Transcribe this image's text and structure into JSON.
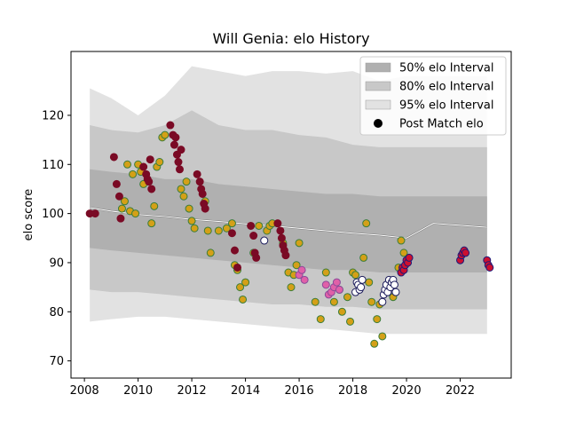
{
  "chart_data": {
    "type": "scatter",
    "title": "Will Genia: elo History",
    "xlabel": "",
    "ylabel": "elo score",
    "xlim": [
      2007.5,
      2023.9
    ],
    "ylim": [
      66.5,
      133
    ],
    "xticks": [
      2008,
      2010,
      2012,
      2014,
      2016,
      2018,
      2020,
      2022
    ],
    "yticks": [
      70,
      80,
      90,
      100,
      110,
      120
    ],
    "grid": false,
    "legend_position": "upper right",
    "legend": [
      {
        "label": "50% elo Interval",
        "color": "#b0b0b0",
        "kind": "band"
      },
      {
        "label": "80% elo Interval",
        "color": "#c8c8c8",
        "kind": "band"
      },
      {
        "label": "95% elo Interval",
        "color": "#e2e2e2",
        "kind": "band"
      },
      {
        "label": "Post Match elo",
        "color": "#000000",
        "kind": "dot"
      }
    ],
    "bands": {
      "x": [
        2008.2,
        2009.0,
        2010.0,
        2011.0,
        2012.0,
        2013.0,
        2014.0,
        2015.0,
        2016.0,
        2017.0,
        2018.0,
        2019.0,
        2020.0,
        2021.0,
        2022.0,
        2023.0
      ],
      "p95_hi": [
        125.5,
        123.5,
        120.0,
        124.0,
        130.0,
        129.0,
        128.0,
        129.0,
        129.0,
        128.5,
        129.0,
        127.0,
        128.0,
        128.0,
        128.0,
        128.0
      ],
      "p80_hi": [
        118.0,
        117.0,
        116.5,
        118.0,
        121.0,
        118.0,
        117.0,
        117.0,
        116.0,
        115.5,
        114.0,
        113.5,
        113.5,
        113.5,
        113.5,
        113.5
      ],
      "p50_hi": [
        109.0,
        108.5,
        108.0,
        107.0,
        107.0,
        106.0,
        105.5,
        105.0,
        104.5,
        104.0,
        104.0,
        103.5,
        103.5,
        103.5,
        103.5,
        103.5
      ],
      "p50_lo": [
        93.0,
        92.5,
        92.0,
        91.5,
        91.0,
        90.5,
        90.0,
        89.5,
        89.0,
        88.5,
        88.5,
        88.0,
        88.0,
        88.0,
        88.0,
        88.0
      ],
      "p80_lo": [
        84.5,
        84.0,
        84.0,
        83.5,
        83.0,
        82.5,
        82.0,
        81.5,
        81.5,
        81.0,
        81.0,
        80.5,
        80.5,
        80.5,
        80.5,
        80.5
      ],
      "p95_lo": [
        78.0,
        78.5,
        79.0,
        79.0,
        78.5,
        78.0,
        77.5,
        77.0,
        76.5,
        76.5,
        76.0,
        75.5,
        75.5,
        75.5,
        75.5,
        75.5
      ]
    },
    "median_line": {
      "x": [
        2008.2,
        2009.0,
        2010.0,
        2011.0,
        2012.0,
        2013.0,
        2014.0,
        2015.0,
        2016.0,
        2017.0,
        2018.0,
        2019.0,
        2020.0,
        2021.0,
        2022.0,
        2023.0
      ],
      "y": [
        101.2,
        100.5,
        99.8,
        99.4,
        98.8,
        98.4,
        97.9,
        97.5,
        97.0,
        96.5,
        96.0,
        95.6,
        95.0,
        98.0,
        97.6,
        97.2
      ]
    },
    "series": [
      {
        "color": "#d4a017",
        "edge": "#3a7d3a",
        "x": [
          2009.4,
          2009.5,
          2009.6,
          2009.7,
          2009.8,
          2009.9,
          2010.0,
          2010.1,
          2010.2,
          2010.5,
          2010.6,
          2010.7,
          2010.8,
          2010.9,
          2011.0,
          2011.6,
          2011.7,
          2011.8,
          2011.9,
          2012.0,
          2012.1,
          2012.5,
          2012.6,
          2012.7,
          2013.0,
          2013.3,
          2013.5,
          2013.6,
          2013.7,
          2013.8,
          2013.9,
          2014.0,
          2014.3,
          2014.5,
          2014.8,
          2014.9,
          2015.0,
          2015.4,
          2015.6,
          2015.7,
          2015.8,
          2015.9,
          2016.0,
          2016.6,
          2016.8,
          2017.0,
          2017.3,
          2017.5,
          2017.6,
          2017.8,
          2017.9,
          2018.0,
          2018.1,
          2018.4,
          2018.5,
          2018.6,
          2018.7,
          2018.8,
          2018.9,
          2019.0,
          2019.1,
          2019.5,
          2019.7,
          2019.8,
          2019.9
        ],
        "y": [
          101.0,
          102.5,
          110.0,
          100.5,
          108.0,
          100.0,
          110.0,
          108.5,
          106.0,
          98.0,
          101.5,
          109.5,
          110.5,
          115.5,
          116.0,
          105.0,
          103.5,
          106.5,
          101.0,
          98.5,
          97.0,
          102.5,
          96.5,
          92.0,
          96.5,
          97.0,
          98.0,
          89.5,
          88.5,
          85.0,
          82.5,
          86.0,
          92.0,
          97.5,
          96.5,
          97.5,
          98.0,
          94.0,
          88.0,
          85.0,
          87.5,
          89.5,
          94.0,
          82.0,
          78.5,
          88.0,
          82.0,
          84.5,
          80.0,
          83.0,
          78.0,
          88.0,
          87.5,
          91.0,
          98.0,
          86.0,
          82.0,
          73.5,
          78.5,
          81.5,
          75.0,
          83.0,
          89.0,
          94.5,
          92.0
        ]
      },
      {
        "color": "#7a0a25",
        "edge": "#7a0a25",
        "x": [
          2008.2,
          2008.4,
          2009.1,
          2009.2,
          2009.3,
          2009.35,
          2010.2,
          2010.3,
          2010.35,
          2010.4,
          2010.45,
          2010.5,
          2011.2,
          2011.3,
          2011.35,
          2011.4,
          2011.45,
          2011.5,
          2011.55,
          2011.6,
          2012.2,
          2012.3,
          2012.35,
          2012.4,
          2012.45,
          2012.5,
          2013.5,
          2013.6,
          2013.7,
          2014.2,
          2014.3,
          2014.35,
          2014.4,
          2015.2,
          2015.3,
          2015.35,
          2015.4,
          2015.45,
          2015.5
        ],
        "y": [
          100.0,
          100.0,
          111.5,
          106.0,
          103.5,
          99.0,
          109.5,
          108.0,
          107.0,
          106.5,
          111.0,
          105.0,
          118.0,
          116.0,
          114.0,
          115.5,
          112.0,
          110.5,
          109.0,
          113.0,
          108.0,
          106.5,
          105.0,
          104.0,
          102.0,
          101.0,
          96.0,
          92.5,
          89.0,
          97.5,
          95.5,
          92.0,
          91.0,
          98.0,
          96.5,
          95.0,
          93.5,
          92.5,
          91.5
        ]
      },
      {
        "color": "#e060a8",
        "edge": "#8a4a9a",
        "x": [
          2016.0,
          2016.1,
          2016.2,
          2017.0,
          2017.1,
          2017.2,
          2017.3,
          2017.4,
          2017.5
        ],
        "y": [
          87.5,
          88.5,
          86.5,
          85.5,
          83.5,
          84.0,
          85.0,
          86.0,
          84.5
        ]
      },
      {
        "color": "#ffffff",
        "edge": "#1a1a5a",
        "x": [
          2014.7,
          2018.1,
          2018.15,
          2018.2,
          2018.25,
          2018.3,
          2018.35,
          2019.1,
          2019.15,
          2019.2,
          2019.25,
          2019.3,
          2019.35,
          2019.4,
          2019.45,
          2019.5,
          2019.55,
          2019.6
        ],
        "y": [
          94.5,
          84.0,
          86.0,
          85.5,
          84.5,
          85.0,
          86.5,
          82.0,
          83.5,
          84.5,
          85.5,
          84.0,
          86.5,
          85.0,
          86.0,
          86.5,
          85.5,
          84.0
        ]
      },
      {
        "color": "#cc1030",
        "edge": "#1a1a7a",
        "x": [
          2019.8,
          2019.85,
          2019.9,
          2019.95,
          2020.0,
          2020.05,
          2020.1,
          2022.0,
          2022.05,
          2022.1,
          2022.15,
          2022.2,
          2023.0,
          2023.05,
          2023.1
        ],
        "y": [
          88.0,
          89.0,
          88.5,
          89.5,
          90.5,
          90.0,
          91.0,
          90.5,
          91.5,
          92.0,
          92.5,
          92.0,
          90.5,
          89.5,
          89.0
        ]
      }
    ]
  }
}
